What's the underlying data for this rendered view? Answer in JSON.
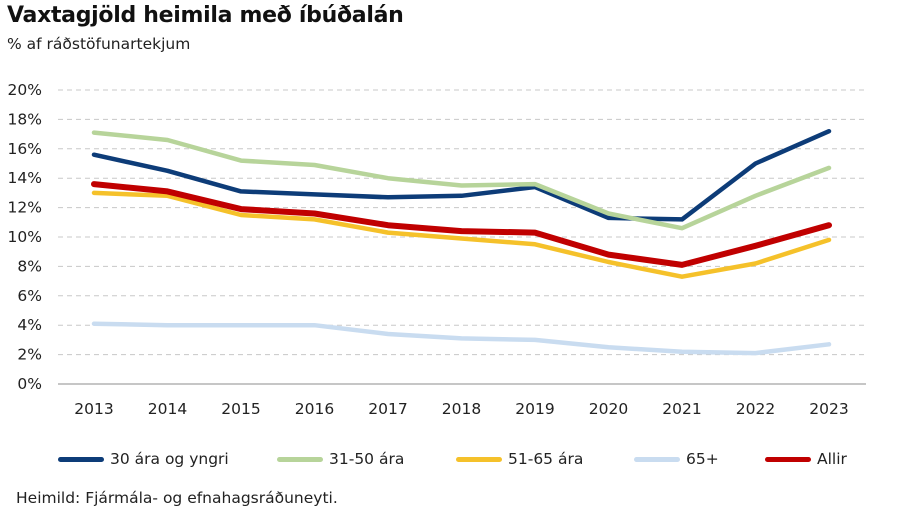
{
  "chart_data": {
    "type": "line",
    "title": "Vaxtagjöld heimila með íbúðalán",
    "subtitle": "% af ráðstöfunartekjum",
    "source": "Heimild: Fjármála- og efnahagsráðuneyti.",
    "x": [
      "2013",
      "2014",
      "2015",
      "2016",
      "2017",
      "2018",
      "2019",
      "2020",
      "2021",
      "2022",
      "2023"
    ],
    "ylim": [
      0,
      20
    ],
    "yticks": [
      "0%",
      "2%",
      "4%",
      "6%",
      "8%",
      "10%",
      "12%",
      "14%",
      "16%",
      "18%",
      "20%"
    ],
    "grid": true,
    "legend_position": "bottom",
    "series": [
      {
        "name": "30 ára og yngri",
        "color": "#0d3c78",
        "values": [
          15.6,
          14.5,
          13.1,
          12.9,
          12.7,
          12.8,
          13.4,
          11.3,
          11.2,
          15.0,
          17.2
        ]
      },
      {
        "name": "31-50 ára",
        "color": "#b7d49a",
        "values": [
          17.1,
          16.6,
          15.2,
          14.9,
          14.0,
          13.5,
          13.6,
          11.6,
          10.6,
          12.8,
          14.7
        ]
      },
      {
        "name": "51-65 ára",
        "color": "#f5c12a",
        "values": [
          13.0,
          12.8,
          11.5,
          11.2,
          10.3,
          9.9,
          9.5,
          8.3,
          7.3,
          8.2,
          9.8
        ]
      },
      {
        "name": "65+",
        "color": "#c9dcf0",
        "values": [
          4.1,
          4.0,
          4.0,
          4.0,
          3.4,
          3.1,
          3.0,
          2.5,
          2.2,
          2.1,
          2.7
        ]
      },
      {
        "name": "Allir",
        "color": "#c00000",
        "values": [
          13.6,
          13.1,
          11.9,
          11.6,
          10.8,
          10.4,
          10.3,
          8.8,
          8.1,
          9.4,
          10.8
        ]
      }
    ]
  }
}
